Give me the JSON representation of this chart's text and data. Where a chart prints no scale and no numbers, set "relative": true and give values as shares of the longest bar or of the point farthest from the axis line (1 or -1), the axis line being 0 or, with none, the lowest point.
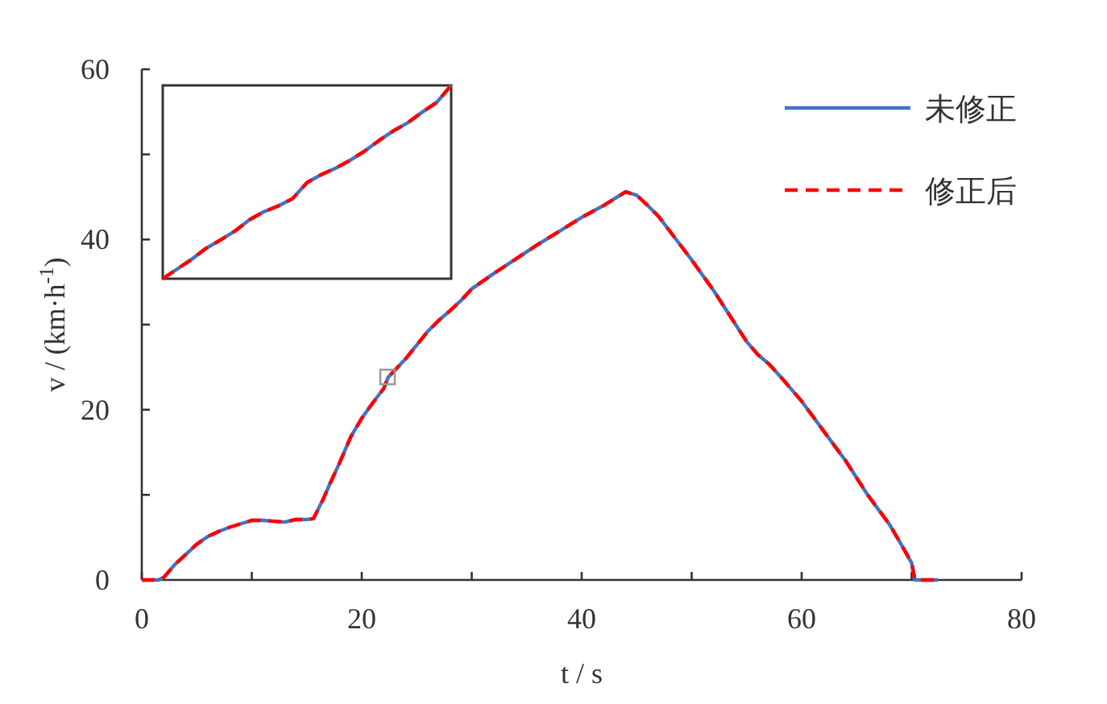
{
  "chart_data": [
    {
      "type": "line",
      "xlabel": "t / s",
      "ylabel": "v / (km·h$^{-1}$)",
      "xlim": [
        0,
        80
      ],
      "ylim": [
        0,
        60
      ],
      "xticks": [
        0,
        {
          "value": 10,
          "label": null
        },
        20,
        {
          "value": 30,
          "label": null
        },
        40,
        {
          "value": 50,
          "label": null
        },
        60,
        {
          "value": 70,
          "label": null
        },
        80
      ],
      "yticks": [
        0,
        {
          "value": 10,
          "label": null
        },
        20,
        {
          "value": 30,
          "label": null
        },
        40,
        {
          "value": 50,
          "label": null
        },
        60
      ],
      "legend": "top right",
      "grid": false,
      "x": [
        0,
        1.5,
        2,
        3,
        4,
        5,
        6,
        7,
        8,
        9,
        10,
        11,
        12,
        13,
        14,
        15,
        15.6,
        16.5,
        17,
        18,
        19,
        20,
        21,
        22,
        22.4,
        24,
        25,
        26,
        27,
        28,
        29,
        30,
        32,
        34,
        36,
        38,
        40,
        42,
        44,
        45,
        46,
        47,
        48,
        50,
        52,
        54,
        55,
        56,
        57,
        58,
        60,
        62,
        64,
        65,
        66,
        68,
        69,
        70,
        70.3,
        72.4
      ],
      "series": [
        {
          "name": "未修正",
          "color": "#4472c4",
          "line_style": "solid",
          "values": [
            0,
            0,
            0.3,
            1.8,
            3,
            4.2,
            5.1,
            5.7,
            6.2,
            6.6,
            7,
            7,
            6.9,
            6.8,
            7.1,
            7.1,
            7.2,
            9.5,
            11,
            13.8,
            16.8,
            19,
            20.8,
            22.5,
            23.8,
            26,
            27.6,
            29.2,
            30.5,
            31.6,
            32.8,
            34.2,
            36,
            37.7,
            39.4,
            41,
            42.6,
            44,
            45.6,
            45.2,
            44,
            42.7,
            41,
            37.6,
            34,
            30,
            28,
            26.5,
            25.4,
            24,
            21,
            17.5,
            14,
            12,
            10,
            6.5,
            4.3,
            2,
            0,
            0
          ]
        },
        {
          "name": "修正后",
          "color": "#ff0000",
          "line_style": "dashed",
          "values": [
            0,
            0,
            0.3,
            1.8,
            3,
            4.2,
            5.1,
            5.7,
            6.2,
            6.6,
            7,
            7,
            6.9,
            6.8,
            7.1,
            7.1,
            7.2,
            9.5,
            11,
            13.8,
            16.8,
            19,
            20.8,
            22.5,
            23.8,
            26,
            27.6,
            29.2,
            30.5,
            31.6,
            32.8,
            34.2,
            36,
            37.7,
            39.4,
            41,
            42.6,
            44,
            45.6,
            45.2,
            44,
            42.7,
            41,
            37.6,
            34,
            30,
            28,
            26.5,
            25.4,
            24,
            21,
            17.5,
            14,
            12,
            10,
            6.5,
            4.3,
            2,
            0,
            0
          ]
        }
      ]
    },
    {
      "type": "line",
      "relative": true,
      "categories": [
        null,
        null,
        null,
        null,
        null,
        null,
        null,
        null,
        null,
        null,
        null,
        null,
        null,
        null,
        null,
        null,
        null,
        null,
        null,
        null,
        null
      ],
      "series": [
        {
          "color": "#4472c4",
          "line_style": "solid",
          "values": [
            0,
            0.05,
            0.1,
            0.157,
            0.2,
            0.246,
            0.304,
            0.346,
            0.376,
            0.414,
            0.497,
            0.539,
            0.572,
            0.613,
            0.66,
            0.715,
            0.765,
            0.807,
            0.862,
            0.912,
            1
          ]
        },
        {
          "color": "#ff0000",
          "line_style": "dashed",
          "values": [
            0,
            0.05,
            0.1,
            0.157,
            0.2,
            0.246,
            0.304,
            0.346,
            0.376,
            0.414,
            0.497,
            0.539,
            0.572,
            0.613,
            0.66,
            0.715,
            0.765,
            0.807,
            0.862,
            0.912,
            1
          ]
        }
      ]
    }
  ]
}
